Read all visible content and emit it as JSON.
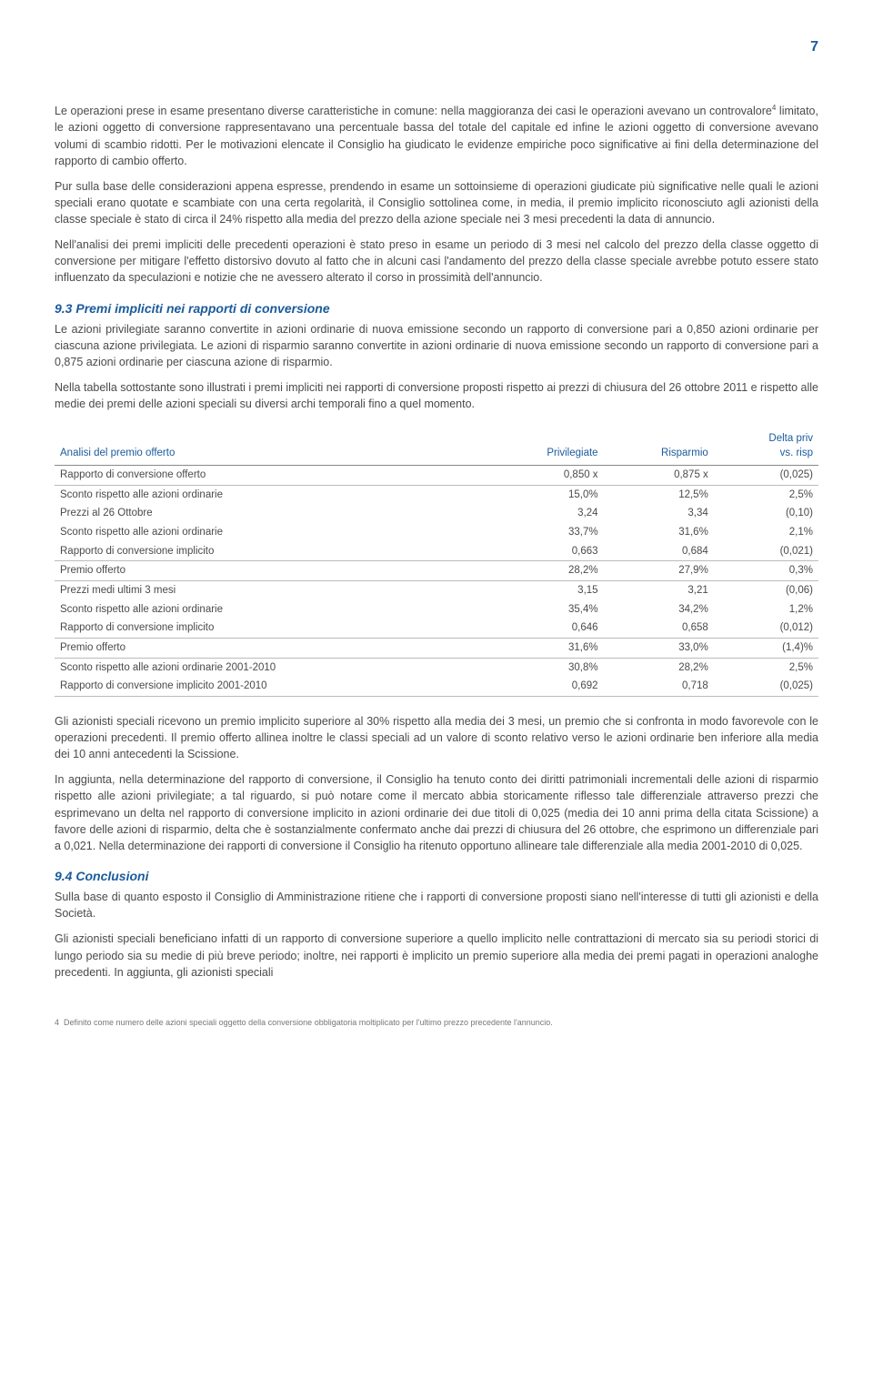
{
  "pageNumber": "7",
  "para1": "Le operazioni prese in esame presentano diverse caratteristiche in comune: nella maggioranza dei casi le operazioni avevano un controvalore",
  "fn4": "4",
  "para1b": " limitato, le azioni oggetto di conversione rappresentavano una percentuale bassa del totale del capitale ed infine le azioni oggetto di conversione avevano volumi di scambio ridotti. Per le motivazioni elencate il Consiglio ha giudicato le evidenze empiriche poco significative ai fini della determinazione del rapporto di cambio offerto.",
  "para2": "Pur sulla base delle considerazioni appena espresse, prendendo in esame un sottoinsieme di operazioni giudicate più significative nelle quali le azioni speciali erano quotate e scambiate con una certa regolarità, il Consiglio sottolinea come, in media, il premio implicito riconosciuto agli azionisti della classe speciale è stato di circa il 24% rispetto alla media del prezzo della azione speciale nei 3 mesi precedenti la data di annuncio.",
  "para3": "Nell'analisi dei premi impliciti delle precedenti operazioni è stato preso in esame un periodo di 3 mesi nel calcolo del prezzo della classe oggetto di conversione per mitigare l'effetto distorsivo dovuto al fatto che in alcuni casi l'andamento del prezzo della classe speciale avrebbe potuto essere stato influenzato da speculazioni e notizie che ne avessero alterato il corso in prossimità dell'annuncio.",
  "sec93title": "9.3  Premi impliciti nei rapporti di conversione",
  "sec93p1": "Le azioni privilegiate saranno convertite in azioni ordinarie di nuova emissione secondo un rapporto di conversione pari a 0,850 azioni ordinarie per ciascuna azione privilegiata. Le azioni di risparmio saranno convertite in azioni ordinarie di nuova emissione secondo un rapporto di conversione pari a 0,875 azioni ordinarie per ciascuna azione di risparmio.",
  "sec93p2": "Nella tabella sottostante sono illustrati i premi impliciti nei rapporti di conversione proposti rispetto ai prezzi di chiusura del 26 ottobre 2011 e rispetto alle medie dei premi delle azioni speciali su diversi archi temporali fino a quel momento.",
  "table": {
    "h1": "Analisi del premio offerto",
    "h2": "Privilegiate",
    "h3": "Risparmio",
    "h4a": "Delta priv",
    "h4b": "vs. risp",
    "rows": [
      {
        "l": "Rapporto di conversione offerto",
        "a": "0,850 x",
        "b": "0,875 x",
        "c": "(0,025)",
        "sep": true
      },
      {
        "l": "Sconto rispetto alle azioni ordinarie",
        "a": "15,0%",
        "b": "12,5%",
        "c": "2,5%"
      },
      {
        "l": "Prezzi al 26 Ottobre",
        "a": "3,24",
        "b": "3,34",
        "c": "(0,10)"
      },
      {
        "l": "Sconto rispetto alle azioni ordinarie",
        "a": "33,7%",
        "b": "31,6%",
        "c": "2,1%"
      },
      {
        "l": "Rapporto di conversione implicito",
        "a": "0,663",
        "b": "0,684",
        "c": "(0,021)",
        "sep": true
      },
      {
        "l": "Premio offerto",
        "a": "28,2%",
        "b": "27,9%",
        "c": "0,3%",
        "sep": true
      },
      {
        "l": "Prezzi medi ultimi 3 mesi",
        "a": "3,15",
        "b": "3,21",
        "c": "(0,06)"
      },
      {
        "l": "Sconto rispetto alle azioni ordinarie",
        "a": "35,4%",
        "b": "34,2%",
        "c": "1,2%"
      },
      {
        "l": "Rapporto di conversione implicito",
        "a": "0,646",
        "b": "0,658",
        "c": "(0,012)",
        "sep": true
      },
      {
        "l": "Premio offerto",
        "a": "31,6%",
        "b": "33,0%",
        "c": "(1,4)%",
        "sep": true
      },
      {
        "l": "Sconto rispetto alle azioni ordinarie 2001-2010",
        "a": "30,8%",
        "b": "28,2%",
        "c": "2,5%"
      },
      {
        "l": "Rapporto di conversione implicito 2001-2010",
        "a": "0,692",
        "b": "0,718",
        "c": "(0,025)",
        "sep": true
      }
    ]
  },
  "afterTable1": "Gli azionisti speciali ricevono un premio implicito superiore al 30% rispetto alla media dei 3 mesi, un premio che si confronta in modo favorevole con le operazioni precedenti. Il premio offerto allinea inoltre le classi speciali ad un valore di sconto relativo verso le azioni ordinarie ben inferiore alla media dei 10 anni antecedenti la Scissione.",
  "afterTable2": "In aggiunta, nella determinazione del rapporto di conversione, il Consiglio ha tenuto conto dei diritti patrimoniali incrementali delle azioni di risparmio rispetto alle azioni privilegiate; a tal riguardo, si può notare come il mercato abbia storicamente riflesso tale differenziale attraverso prezzi che esprimevano un delta nel rapporto di conversione implicito in azioni ordinarie dei due titoli di 0,025 (media dei 10 anni prima della citata Scissione) a favore delle azioni di risparmio, delta che è sostanzialmente confermato anche dai prezzi di chiusura del 26 ottobre, che esprimono un differenziale pari a 0,021. Nella determinazione dei rapporti di conversione il Consiglio ha ritenuto opportuno allineare tale differenziale alla media 2001-2010 di 0,025.",
  "sec94title": "9.4  Conclusioni",
  "sec94p1": "Sulla base di quanto esposto il Consiglio di Amministrazione ritiene che i rapporti di conversione proposti siano nell'interesse di tutti gli azionisti e della Società.",
  "sec94p2": "Gli azionisti speciali beneficiano infatti di un rapporto di conversione superiore a quello implicito nelle contrattazioni di mercato sia su periodi storici di lungo periodo sia su medie di più breve periodo; inoltre, nei rapporti è implicito un premio superiore alla media dei premi pagati in operazioni analoghe precedenti. In aggiunta, gli azionisti speciali",
  "footnote": "Definito come numero delle azioni speciali oggetto della conversione obbligatoria moltiplicato per l'ultimo prezzo precedente l'annuncio.",
  "footnoteNum": "4"
}
